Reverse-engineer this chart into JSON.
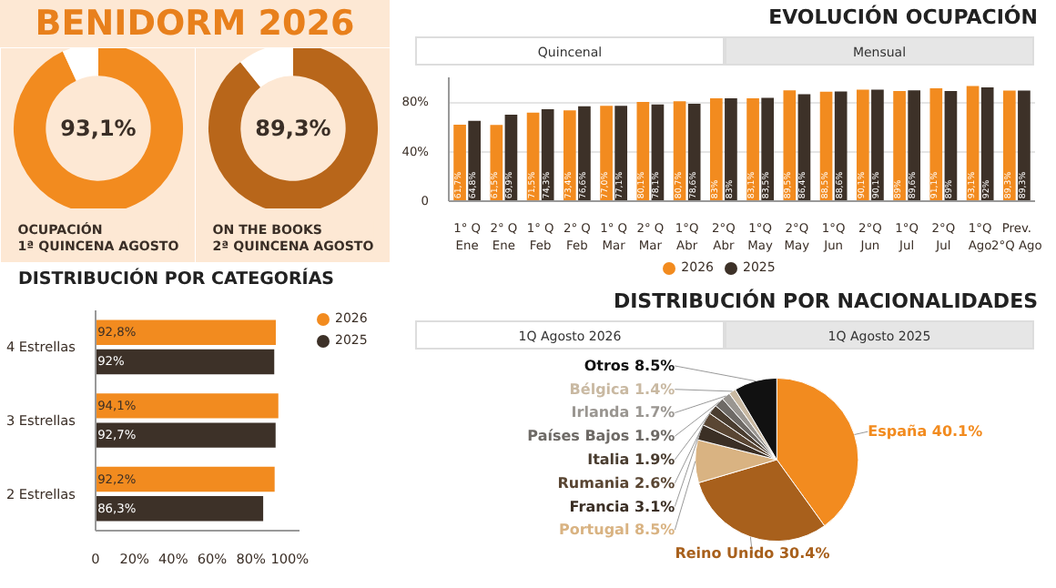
{
  "chart_data": [
    {
      "type": "donut",
      "title": "BENIDORM 2026",
      "subtitle": "OCUPACIÓN\n1ª QUINCENA AGOSTO",
      "categories": [
        null,
        null
      ],
      "values": [
        93.1,
        6.9
      ],
      "colors": [
        "#f28b1f",
        "#ffffff"
      ],
      "value_labels": [
        "93,1%",
        null
      ]
    },
    {
      "type": "donut",
      "subtitle": "ON THE BOOKS\n2ª QUINCENA AGOSTO",
      "categories": [
        null,
        null
      ],
      "values": [
        89.3,
        10.7
      ],
      "colors": [
        "#b8661a",
        "#ffffff"
      ],
      "value_labels": [
        "89,3%",
        null
      ]
    },
    {
      "type": "bar",
      "title": "EVOLUCIÓN OCUPACIÓN",
      "annotations": [
        "Quincenal",
        "Mensual"
      ],
      "categories": [
        "1° Q Ene",
        "2° Q Ene",
        "1° Q Feb",
        "2° Q Feb",
        "1° Q Mar",
        "2° Q Mar",
        "1°Q Abr",
        "2°Q Abr",
        "1°Q May",
        "2°Q May",
        "1°Q Jun",
        "2°Q Jun",
        "1°Q Jul",
        "2°Q Jul",
        "1°Q Ago",
        "Prev.\n2°Q Ago"
      ],
      "ylim": [
        0,
        100
      ],
      "yticks": [
        0,
        {
          "value": 40,
          "label": "40%"
        },
        {
          "value": 80,
          "label": "80%"
        }
      ],
      "grid": "y",
      "legend": "bottom",
      "series": [
        {
          "name": "2026",
          "color": "#f28b1f",
          "values": [
            61.7,
            61.5,
            71.5,
            73.4,
            77.0,
            80.1,
            80.7,
            83.0,
            83.1,
            89.5,
            88.5,
            90.1,
            89.0,
            91.1,
            93.1,
            89.3
          ],
          "value_labels": [
            "61,7%",
            "61,5%",
            "71,5%",
            "73,4%",
            "77,0%",
            "80,1%",
            "80,7%",
            "83%",
            "83,1%",
            "89,5%",
            "88,5%",
            "90,1%",
            "89%",
            "91,1%",
            "93,1%",
            "89,3%"
          ]
        },
        {
          "name": "2025",
          "color": "#3d3128",
          "values": [
            64.8,
            69.9,
            74.3,
            76.6,
            77.1,
            78.1,
            78.6,
            83.0,
            83.5,
            86.4,
            88.6,
            90.1,
            89.6,
            89.0,
            92.0,
            89.3
          ],
          "value_labels": [
            "64,8%",
            "69,9%",
            "74,3%",
            "76,6%",
            "77,1%",
            "78,1%",
            "78,6%",
            "83%",
            "83,5%",
            "86,4%",
            "88,6%",
            "90,1%",
            "89,6%",
            "89%",
            "92%",
            "89,3%"
          ]
        }
      ]
    },
    {
      "type": "bar",
      "orientation": "horizontal",
      "title": "DISTRIBUCIÓN POR CATEGORÍAS",
      "categories": [
        "4 Estrellas",
        "3 Estrellas",
        "2 Estrellas"
      ],
      "xlim": [
        0,
        105
      ],
      "xticks": [
        0,
        {
          "value": 20,
          "label": "20%"
        },
        {
          "value": 40,
          "label": "40%"
        },
        {
          "value": 60,
          "label": "60%"
        },
        {
          "value": 80,
          "label": "80%"
        },
        {
          "value": 100,
          "label": "100%"
        }
      ],
      "legend": "top right",
      "series": [
        {
          "name": "2026",
          "color": "#f28b1f",
          "values": [
            92.8,
            94.1,
            92.2
          ],
          "value_labels": [
            "92,8%",
            "94,1%",
            "92,2%"
          ]
        },
        {
          "name": "2025",
          "color": "#3d3128",
          "values": [
            92,
            92.7,
            86.3
          ],
          "value_labels": [
            "92%",
            "92,7%",
            "86,3%"
          ]
        }
      ]
    },
    {
      "type": "pie",
      "title": "DISTRIBUCIÓN POR NACIONALIDADES",
      "annotations": [
        "1Q Agosto 2026",
        "1Q Agosto 2025"
      ],
      "categories": [
        "España",
        "Reino Unido",
        "Portugal",
        "Francia",
        "Rumania",
        "Italia",
        "Países Bajos",
        "Irlanda",
        "Bélgica",
        "Otros"
      ],
      "values": [
        40.1,
        30.4,
        8.5,
        3.1,
        2.6,
        1.9,
        1.9,
        1.7,
        1.4,
        8.5
      ],
      "colors": [
        "#f28b1f",
        "#a8601c",
        "#d9b382",
        "#3b2f25",
        "#5a4633",
        "#4a3d30",
        "#6e6a66",
        "#9a9691",
        "#c9b9a2",
        "#111111"
      ],
      "value_labels": [
        "40.1%",
        "30.4%",
        "8.5%",
        "3.1%",
        "2.6%",
        "1.9%",
        "1.9%",
        "1.7%",
        "1.4%",
        "8.5%"
      ]
    }
  ]
}
